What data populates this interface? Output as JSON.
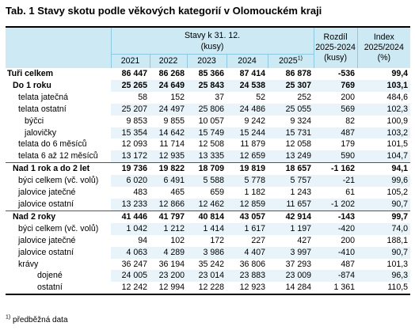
{
  "title": "Tab. 1 Stavy skotu podle věkových kategorií v Olomouckém kraji",
  "header": {
    "group_label": "Stavy k 31. 12.",
    "group_unit": "(kusy)",
    "diff_label": "Rozdíl",
    "diff_period": "2025-2024",
    "diff_unit": "(kusy)",
    "index_label": "Index",
    "index_period": "2025/2024",
    "index_unit": "(%)",
    "years": [
      "2021",
      "2022",
      "2023",
      "2024",
      "2025"
    ],
    "year_note_mark": "1)"
  },
  "rows": [
    {
      "label": "Tuři celkem",
      "level": 0,
      "bold": true,
      "values": [
        "86 447",
        "86 268",
        "85 366",
        "87 414",
        "86 878",
        "-536",
        "99,4"
      ]
    },
    {
      "label": "Do 1 roku",
      "level": 1,
      "bold": true,
      "values": [
        "25 265",
        "24 649",
        "25 843",
        "24 538",
        "25 307",
        "769",
        "103,1"
      ]
    },
    {
      "label": "telata jatečná",
      "level": 2,
      "bold": false,
      "values": [
        "58",
        "152",
        "37",
        "52",
        "252",
        "200",
        "484,6"
      ]
    },
    {
      "label": "telata ostatní",
      "level": 2,
      "bold": false,
      "values": [
        "25 207",
        "24 497",
        "25 806",
        "24 486",
        "25 055",
        "569",
        "102,3"
      ]
    },
    {
      "label": "býčci",
      "level": 3,
      "bold": false,
      "values": [
        "9 853",
        "9 855",
        "10 057",
        "9 242",
        "9 324",
        "82",
        "100,9"
      ]
    },
    {
      "label": "jalovičky",
      "level": 3,
      "bold": false,
      "values": [
        "15 354",
        "14 642",
        "15 749",
        "15 244",
        "15 731",
        "487",
        "103,2"
      ]
    },
    {
      "label": "telata do 6 měsíců",
      "level": 2,
      "bold": false,
      "values": [
        "12 093",
        "11 714",
        "12 508",
        "11 879",
        "12 058",
        "179",
        "101,5"
      ]
    },
    {
      "label": "telata 6 až 12 měsíců",
      "level": 2,
      "bold": false,
      "values": [
        "13 172",
        "12 935",
        "13 335",
        "12 659",
        "13 249",
        "590",
        "104,7"
      ]
    },
    {
      "label": "Nad 1 rok a do 2 let",
      "level": 1,
      "bold": true,
      "sep": true,
      "values": [
        "19 736",
        "19 822",
        "18 709",
        "19 819",
        "18 657",
        "-1 162",
        "94,1"
      ]
    },
    {
      "label": "býci celkem (vč. volů)",
      "level": 2,
      "bold": false,
      "values": [
        "6 020",
        "6 491",
        "5 588",
        "5 778",
        "5 757",
        "-21",
        "99,6"
      ]
    },
    {
      "label": "jalovice jatečné",
      "level": 2,
      "bold": false,
      "values": [
        "483",
        "465",
        "659",
        "1 182",
        "1 243",
        "61",
        "105,2"
      ]
    },
    {
      "label": "jalovice ostatní",
      "level": 2,
      "bold": false,
      "values": [
        "13 233",
        "12 866",
        "12 462",
        "12 859",
        "11 657",
        "-1 202",
        "90,7"
      ]
    },
    {
      "label": "Nad 2 roky",
      "level": 1,
      "bold": true,
      "sep": true,
      "values": [
        "41 446",
        "41 797",
        "40 814",
        "43 057",
        "42 914",
        "-143",
        "99,7"
      ]
    },
    {
      "label": "býci celkem (vč. volů)",
      "level": 2,
      "bold": false,
      "values": [
        "1 042",
        "1 212",
        "1 414",
        "1 617",
        "1 197",
        "-420",
        "74,0"
      ]
    },
    {
      "label": "jalovice jatečné",
      "level": 2,
      "bold": false,
      "values": [
        "94",
        "102",
        "172",
        "227",
        "427",
        "200",
        "188,1"
      ]
    },
    {
      "label": "jalovice ostatní",
      "level": 2,
      "bold": false,
      "values": [
        "4 063",
        "4 289",
        "3 986",
        "4 407",
        "3 997",
        "-410",
        "90,7"
      ]
    },
    {
      "label": "krávy",
      "level": 2,
      "bold": false,
      "values": [
        "36 247",
        "36 194",
        "35 242",
        "36 806",
        "37 293",
        "487",
        "101,3"
      ]
    },
    {
      "label": "dojené",
      "level": 4,
      "bold": false,
      "values": [
        "24 005",
        "23 200",
        "23 014",
        "23 883",
        "23 009",
        "-874",
        "96,3"
      ]
    },
    {
      "label": "ostatní",
      "level": 4,
      "bold": false,
      "values": [
        "12 242",
        "12 994",
        "12 228",
        "12 923",
        "14 284",
        "1 361",
        "110,5"
      ]
    }
  ],
  "footnote_mark": "1)",
  "footnote": "předběžná data",
  "colors": {
    "header_bg": "#cde9f4",
    "row_shade": "#e8f4fa",
    "header_line": "#8cc9e0"
  }
}
